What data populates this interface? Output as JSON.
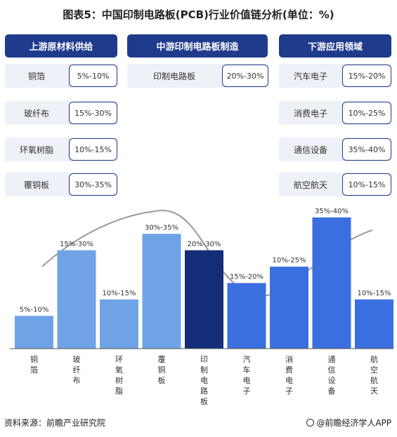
{
  "title": "图表5：中国印制电路板(PCB)行业价值链分析(单位：%)",
  "columns": [
    {
      "header": "上游原材料供给",
      "rows": [
        {
          "label": "铜箔",
          "value": "5%-10%"
        },
        {
          "label": "玻纤布",
          "value": "15%-30%"
        },
        {
          "label": "环氧树脂",
          "value": "10%-15%"
        },
        {
          "label": "覆铜板",
          "value": "30%-35%"
        }
      ]
    },
    {
      "header": "中游印制电路板制造",
      "rows": [
        {
          "label": "印制电路板",
          "value": "20%-30%"
        }
      ]
    },
    {
      "header": "下游应用领域",
      "rows": [
        {
          "label": "汽车电子",
          "value": "15%-20%"
        },
        {
          "label": "消费电子",
          "value": "10%-25%"
        },
        {
          "label": "通信设备",
          "value": "35%-40%"
        },
        {
          "label": "航空航天",
          "value": "10%-15%"
        }
      ]
    }
  ],
  "chart_data": {
    "type": "bar",
    "categories": [
      "铜箔",
      "玻纤布",
      "环氧树脂",
      "覆铜板",
      "印制电路板",
      "汽车电子",
      "消费电子",
      "通信设备",
      "航空航天"
    ],
    "values": [
      10,
      30,
      15,
      35,
      30,
      20,
      25,
      40,
      15
    ],
    "data_labels": [
      "5%-10%",
      "15%-30%",
      "10%-15%",
      "30%-35%",
      "20%-30%",
      "15%-20%",
      "10%-25%",
      "35%-40%",
      "10%-15%"
    ],
    "segments": [
      "upstream",
      "upstream",
      "upstream",
      "upstream",
      "midstream",
      "downstream",
      "downstream",
      "downstream",
      "downstream"
    ],
    "colors": {
      "upstream": "#6fa3e6",
      "midstream": "#152e79",
      "downstream": "#3b6fe0",
      "axis": "#555555",
      "curve": "#9a9a9a"
    },
    "ylim": [
      0,
      40
    ],
    "grid": false,
    "legend": "none"
  },
  "footer": {
    "source": "资料来源：前瞻产业研究院",
    "brand": "@前瞻经济学人APP"
  }
}
